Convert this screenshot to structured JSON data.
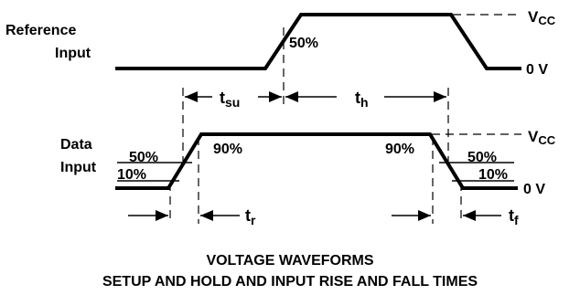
{
  "reference": {
    "label_line1": "Reference",
    "label_line2": "Input",
    "vcc_label": "V",
    "vcc_sub": "CC",
    "zero_label": "0 V",
    "mid_label": "50%"
  },
  "data_input": {
    "label_line1": "Data",
    "label_line2": "Input",
    "vcc_label": "V",
    "vcc_sub": "CC",
    "zero_label": "0 V",
    "rise_90": "90%",
    "fall_90": "90%",
    "rise_50": "50%",
    "rise_10": "10%",
    "fall_50": "50%",
    "fall_10": "10%"
  },
  "timing": {
    "tsu_main": "t",
    "tsu_sub": "su",
    "th_main": "t",
    "th_sub": "h",
    "tr_main": "t",
    "tr_sub": "r",
    "tf_main": "t",
    "tf_sub": "f"
  },
  "caption": {
    "line1": "VOLTAGE WAVEFORMS",
    "line2": "SETUP AND HOLD AND INPUT RISE AND FALL TIMES"
  }
}
